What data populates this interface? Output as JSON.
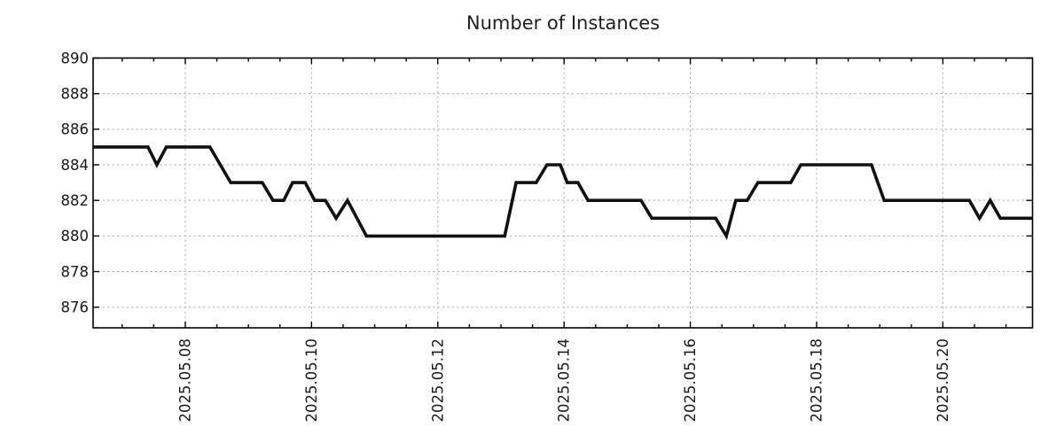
{
  "chart_data": {
    "type": "line",
    "title": "Number of Instances",
    "legend": "none",
    "x_axis": {
      "kind": "time",
      "lim_days": [
        6.54,
        21.42
      ],
      "minor_tick_step_days": 0.5,
      "grid": "dashed",
      "major_ticks": [
        {
          "day": 8,
          "label": "2025.05.08"
        },
        {
          "day": 10,
          "label": "2025.05.10"
        },
        {
          "day": 12,
          "label": "2025.05.12"
        },
        {
          "day": 14,
          "label": "2025.05.14"
        },
        {
          "day": 16,
          "label": "2025.05.16"
        },
        {
          "day": 18,
          "label": "2025.05.18"
        },
        {
          "day": 20,
          "label": "2025.05.20"
        }
      ]
    },
    "y_axis": {
      "lim": [
        874.84,
        890
      ],
      "tick_step": 2,
      "ticks": [
        890,
        888,
        886,
        884,
        882,
        880,
        878,
        876
      ],
      "grid": "dashed"
    },
    "series": [
      {
        "name": "Number of Instances",
        "color": "#111111",
        "width": 3.6,
        "points": [
          [
            6.54,
            885
          ],
          [
            7.41,
            885
          ],
          [
            7.55,
            884
          ],
          [
            7.7,
            885
          ],
          [
            8.39,
            885
          ],
          [
            8.72,
            883
          ],
          [
            9.22,
            883
          ],
          [
            9.39,
            882
          ],
          [
            9.56,
            882
          ],
          [
            9.7,
            883
          ],
          [
            9.9,
            883
          ],
          [
            10.05,
            882
          ],
          [
            10.22,
            882
          ],
          [
            10.39,
            881
          ],
          [
            10.57,
            882
          ],
          [
            10.87,
            880
          ],
          [
            13.06,
            880
          ],
          [
            13.24,
            883
          ],
          [
            13.56,
            883
          ],
          [
            13.73,
            884
          ],
          [
            13.94,
            884
          ],
          [
            14.05,
            883
          ],
          [
            14.22,
            883
          ],
          [
            14.38,
            882
          ],
          [
            15.22,
            882
          ],
          [
            15.39,
            881
          ],
          [
            16.4,
            881
          ],
          [
            16.57,
            880
          ],
          [
            16.72,
            882
          ],
          [
            16.9,
            882
          ],
          [
            17.07,
            883
          ],
          [
            17.59,
            883
          ],
          [
            17.75,
            884
          ],
          [
            18.87,
            884
          ],
          [
            19.07,
            882
          ],
          [
            20.42,
            882
          ],
          [
            20.58,
            881
          ],
          [
            20.75,
            882
          ],
          [
            20.91,
            881
          ],
          [
            21.42,
            881
          ]
        ]
      }
    ],
    "colors": {
      "background": "#ffffff",
      "grid": "#a6a6a6",
      "axis": "#000000",
      "line": "#111111",
      "text": "#1a1a1a"
    }
  }
}
